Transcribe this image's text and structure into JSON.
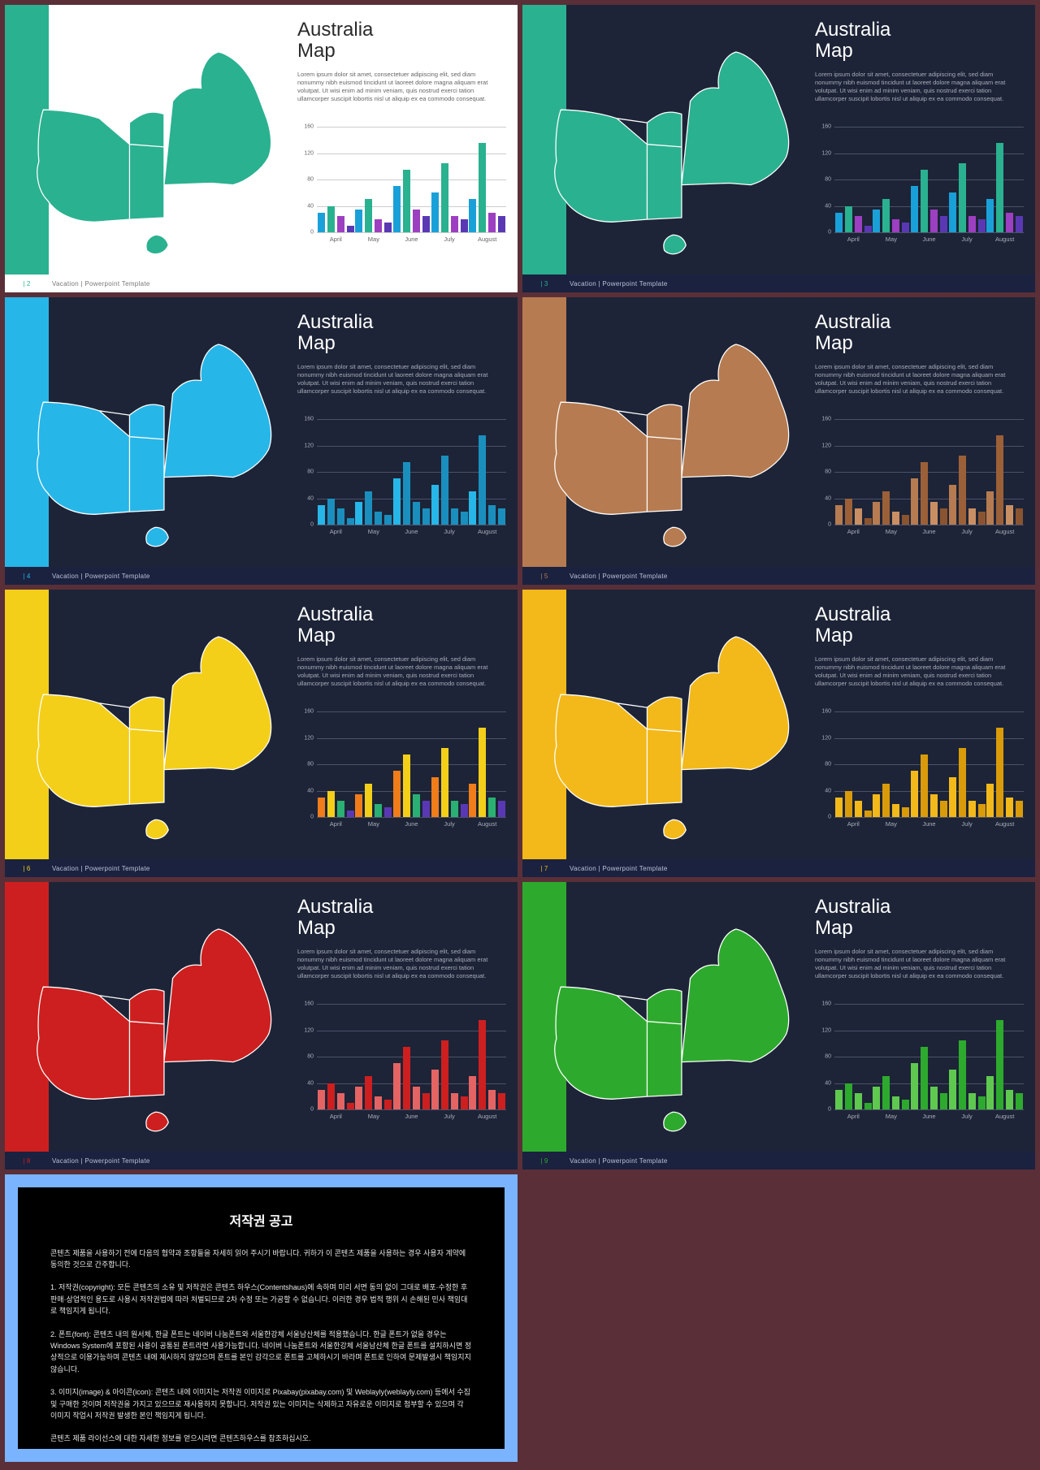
{
  "page_bg": "#5a2f38",
  "common": {
    "title_l1": "Australia",
    "title_l2": "Map",
    "body": "Lorem ipsum dolor sit amet, consectetuer adipiscing elit, sed diam nonummy nibh euismod tincidunt ut laoreet dolore magna aliquam erat volutpat. Ut wisi enim ad minim veniam, quis nostrud exerci tation ullamcorper suscipit lobortis nisl ut aliquip ex ea commodo consequat.",
    "footer_text": "Vacation | Powerpoint Template",
    "chart": {
      "ymax": 160,
      "yticks": [
        160,
        120,
        80,
        40,
        0
      ],
      "months": [
        "April",
        "May",
        "June",
        "July",
        "August"
      ],
      "series": [
        [
          30,
          40,
          25,
          10
        ],
        [
          35,
          50,
          20,
          15
        ],
        [
          70,
          95,
          35,
          25
        ],
        [
          60,
          105,
          25,
          20
        ],
        [
          50,
          135,
          30,
          25
        ]
      ]
    }
  },
  "slides": [
    {
      "page": "2",
      "bg": "#ffffff",
      "band": "#2ab190",
      "map": "#2ab190",
      "text": "#2b2b2b",
      "subtext": "#666666",
      "bars": [
        "#1aa0d8",
        "#2ab190",
        "#9d3fc1",
        "#5a38b4"
      ],
      "footer_bg": "#ffffff",
      "footer_text": "#777",
      "grid": "#cccccc"
    },
    {
      "page": "3",
      "bg": "#1d2437",
      "band": "#2ab190",
      "map": "#2ab190",
      "text": "#ffffff",
      "subtext": "#a8adb9",
      "bars": [
        "#1aa0d8",
        "#2ab190",
        "#9d3fc1",
        "#5a38b4"
      ],
      "footer_bg": "#1a2240",
      "footer_text": "#bcc2d4",
      "grid": "#4a5268"
    },
    {
      "page": "4",
      "bg": "#1d2437",
      "band": "#27b6e8",
      "map": "#27b6e8",
      "text": "#ffffff",
      "subtext": "#a8adb9",
      "bars": [
        "#27b6e8",
        "#1a8fbe",
        "#1a8fbe",
        "#1a8fbe"
      ],
      "footer_bg": "#1a2240",
      "footer_text": "#bcc2d4",
      "grid": "#4a5268"
    },
    {
      "page": "5",
      "bg": "#1d2437",
      "band": "#b67b50",
      "map": "#b67b50",
      "text": "#ffffff",
      "subtext": "#a8adb9",
      "bars": [
        "#b67b50",
        "#9b6038",
        "#c98f63",
        "#8a5430"
      ],
      "footer_bg": "#1a2240",
      "footer_text": "#bcc2d4",
      "grid": "#4a5268"
    },
    {
      "page": "6",
      "bg": "#1d2437",
      "band": "#f3cf1a",
      "map": "#f3cf1a",
      "text": "#ffffff",
      "subtext": "#a8adb9",
      "bars": [
        "#f07c1a",
        "#f3cf1a",
        "#2ab073",
        "#5a38b4"
      ],
      "footer_bg": "#1a2240",
      "footer_text": "#bcc2d4",
      "grid": "#4a5268"
    },
    {
      "page": "7",
      "bg": "#1d2437",
      "band": "#f3b91a",
      "map": "#f3b91a",
      "text": "#ffffff",
      "subtext": "#a8adb9",
      "bars": [
        "#f3b91a",
        "#d99b0a",
        "#f3b91a",
        "#d99b0a"
      ],
      "footer_bg": "#1a2240",
      "footer_text": "#bcc2d4",
      "grid": "#4a5268"
    },
    {
      "page": "8",
      "bg": "#1d2437",
      "band": "#cd1f1f",
      "map": "#cd1f1f",
      "text": "#ffffff",
      "subtext": "#a8adb9",
      "bars": [
        "#e46464",
        "#cd1f1f",
        "#e46464",
        "#cd1f1f"
      ],
      "footer_bg": "#1a2240",
      "footer_text": "#bcc2d4",
      "grid": "#4a5268"
    },
    {
      "page": "9",
      "bg": "#1d2437",
      "band": "#2daa2d",
      "map": "#2daa2d",
      "text": "#ffffff",
      "subtext": "#a8adb9",
      "bars": [
        "#5fc94f",
        "#2daa2d",
        "#5fc94f",
        "#2daa2d"
      ],
      "footer_bg": "#1a2240",
      "footer_text": "#bcc2d4",
      "grid": "#4a5268"
    }
  ],
  "copyright": {
    "border": "#7ab3ff",
    "title": "저작권 공고",
    "p1": "콘텐츠 제품을 사용하기 전에 다음의 협약과 조항들을 자세히 읽어 주시기 바랍니다. 귀하가 이 콘텐츠 제품을 사용하는 경우 사용자 계약에 동의한 것으로 간주합니다.",
    "p2": "1. 저작권(copyright): 모든 콘텐츠의 소유 및 저작권은 콘텐츠 하우스(Contentshaus)에 속하며 미리 서면 동의 없이 그대로 배포·수정한 후 판매·상업적인 용도로 사용시 저작권법에 따라 처벌되므로 2차 수정 또는 가공할 수 없습니다. 이러한 경우 법적 행위 시 손해된 민사 책임대로 책임지게 됩니다.",
    "p3": "2. 폰트(font): 콘텐츠 내의 원서체, 한글 폰트는 네이버 나눔폰트와 서울한강체 서울남산체를 적용했습니다. 한글 폰트가 없을 경우는 Windows System에 포함된 사용이 공통된 폰트라면 사용가능합니다. 네이버 나눔폰트와 서울한강체 서울남산체 한글 폰트를 설치하시면 정상적으로 이용가능하며 콘텐츠 내에 제시하지 않았으며 폰트를 본인 감각으로 폰트를 고체하시기 바라며 폰트로 인하여 문제발생시 책임지지 않습니다.",
    "p4": "3. 이미지(image) & 아이콘(icon): 콘텐츠 내에 이미지는 저작권 이미지로 Pixabay(pixabay.com) 및 Weblayly(weblayly.com) 등에서 수집 및 구매한 것이며 저작권을 가지고 있으므로 재사용하지 못합니다. 저작권 있는 이미지는 삭제하고 자유로운 이미지로 첨부할 수 있으며 각 이미지 작업시 저작권 발생한 본인 책임지게 됩니다.",
    "p5": "콘텐츠 제품 라이선스에 대한 자세한 정보를 얻으시려면 콘텐츠하우스를 참조하십시오."
  }
}
